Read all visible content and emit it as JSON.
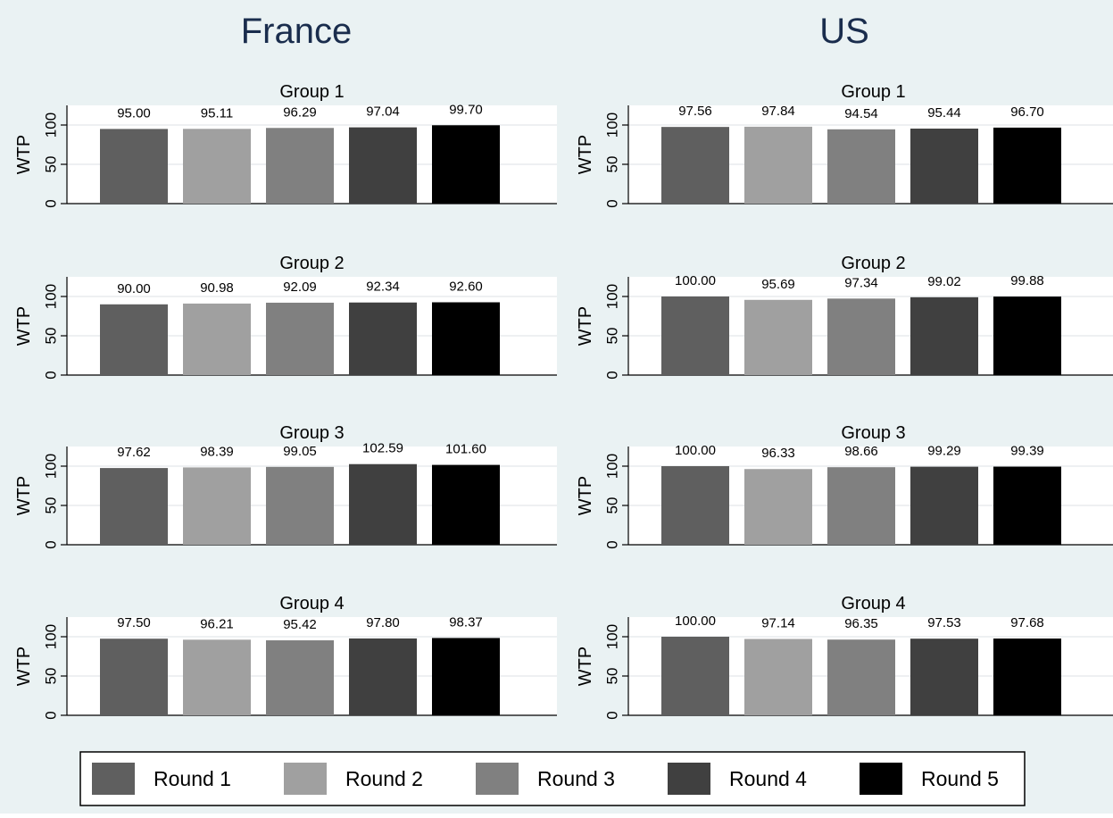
{
  "colors": {
    "outer_background": "#eaf2f3",
    "plot_background": "#ffffff",
    "gridline": "#e8ecee",
    "axis": "#000000",
    "title_text": "#1a2d4d",
    "round_colors": [
      "#5f5f5f",
      "#a0a0a0",
      "#808080",
      "#404040",
      "#000000"
    ]
  },
  "legend": {
    "labels": [
      "Round 1",
      "Round 2",
      "Round 3",
      "Round 4",
      "Round 5"
    ]
  },
  "chart_data": [
    {
      "type": "bar",
      "title": "France",
      "subtitle": "Group 1",
      "ylabel": "WTP",
      "ylim": [
        0,
        125
      ],
      "yticks": [
        0,
        50,
        100
      ],
      "categories": [
        "Round 1",
        "Round 2",
        "Round 3",
        "Round 4",
        "Round 5"
      ],
      "values": [
        95.0,
        95.11,
        96.29,
        97.04,
        99.7
      ],
      "value_labels": [
        "95.00",
        "95.11",
        "96.29",
        "97.04",
        "99.70"
      ]
    },
    {
      "type": "bar",
      "title": "US",
      "subtitle": "Group 1",
      "ylabel": "WTP",
      "ylim": [
        0,
        125
      ],
      "yticks": [
        0,
        50,
        100
      ],
      "categories": [
        "Round 1",
        "Round 2",
        "Round 3",
        "Round 4",
        "Round 5"
      ],
      "values": [
        97.56,
        97.84,
        94.54,
        95.44,
        96.7
      ],
      "value_labels": [
        "97.56",
        "97.84",
        "94.54",
        "95.44",
        "96.70"
      ]
    },
    {
      "type": "bar",
      "subtitle": "Group 2",
      "ylabel": "WTP",
      "ylim": [
        0,
        125
      ],
      "yticks": [
        0,
        50,
        100
      ],
      "categories": [
        "Round 1",
        "Round 2",
        "Round 3",
        "Round 4",
        "Round 5"
      ],
      "values": [
        90.0,
        90.98,
        92.09,
        92.34,
        92.6
      ],
      "value_labels": [
        "90.00",
        "90.98",
        "92.09",
        "92.34",
        "92.60"
      ]
    },
    {
      "type": "bar",
      "subtitle": "Group 2",
      "ylabel": "WTP",
      "ylim": [
        0,
        125
      ],
      "yticks": [
        0,
        50,
        100
      ],
      "categories": [
        "Round 1",
        "Round 2",
        "Round 3",
        "Round 4",
        "Round 5"
      ],
      "values": [
        100.0,
        95.69,
        97.34,
        99.02,
        99.88
      ],
      "value_labels": [
        "100.00",
        "95.69",
        "97.34",
        "99.02",
        "99.88"
      ]
    },
    {
      "type": "bar",
      "subtitle": "Group 3",
      "ylabel": "WTP",
      "ylim": [
        0,
        125
      ],
      "yticks": [
        0,
        50,
        100
      ],
      "categories": [
        "Round 1",
        "Round 2",
        "Round 3",
        "Round 4",
        "Round 5"
      ],
      "values": [
        97.62,
        98.39,
        99.05,
        102.59,
        101.6
      ],
      "value_labels": [
        "97.62",
        "98.39",
        "99.05",
        "102.59",
        "101.60"
      ]
    },
    {
      "type": "bar",
      "subtitle": "Group 3",
      "ylabel": "WTP",
      "ylim": [
        0,
        125
      ],
      "yticks": [
        0,
        50,
        100
      ],
      "categories": [
        "Round 1",
        "Round 2",
        "Round 3",
        "Round 4",
        "Round 5"
      ],
      "values": [
        100.0,
        96.33,
        98.66,
        99.29,
        99.39
      ],
      "value_labels": [
        "100.00",
        "96.33",
        "98.66",
        "99.29",
        "99.39"
      ]
    },
    {
      "type": "bar",
      "subtitle": "Group 4",
      "ylabel": "WTP",
      "ylim": [
        0,
        125
      ],
      "yticks": [
        0,
        50,
        100
      ],
      "categories": [
        "Round 1",
        "Round 2",
        "Round 3",
        "Round 4",
        "Round 5"
      ],
      "values": [
        97.5,
        96.21,
        95.42,
        97.8,
        98.37
      ],
      "value_labels": [
        "97.50",
        "96.21",
        "95.42",
        "97.80",
        "98.37"
      ]
    },
    {
      "type": "bar",
      "subtitle": "Group 4",
      "ylabel": "WTP",
      "ylim": [
        0,
        125
      ],
      "yticks": [
        0,
        50,
        100
      ],
      "categories": [
        "Round 1",
        "Round 2",
        "Round 3",
        "Round 4",
        "Round 5"
      ],
      "values": [
        100.0,
        97.14,
        96.35,
        97.53,
        97.68
      ],
      "value_labels": [
        "100.00",
        "97.14",
        "96.35",
        "97.53",
        "97.68"
      ]
    }
  ]
}
